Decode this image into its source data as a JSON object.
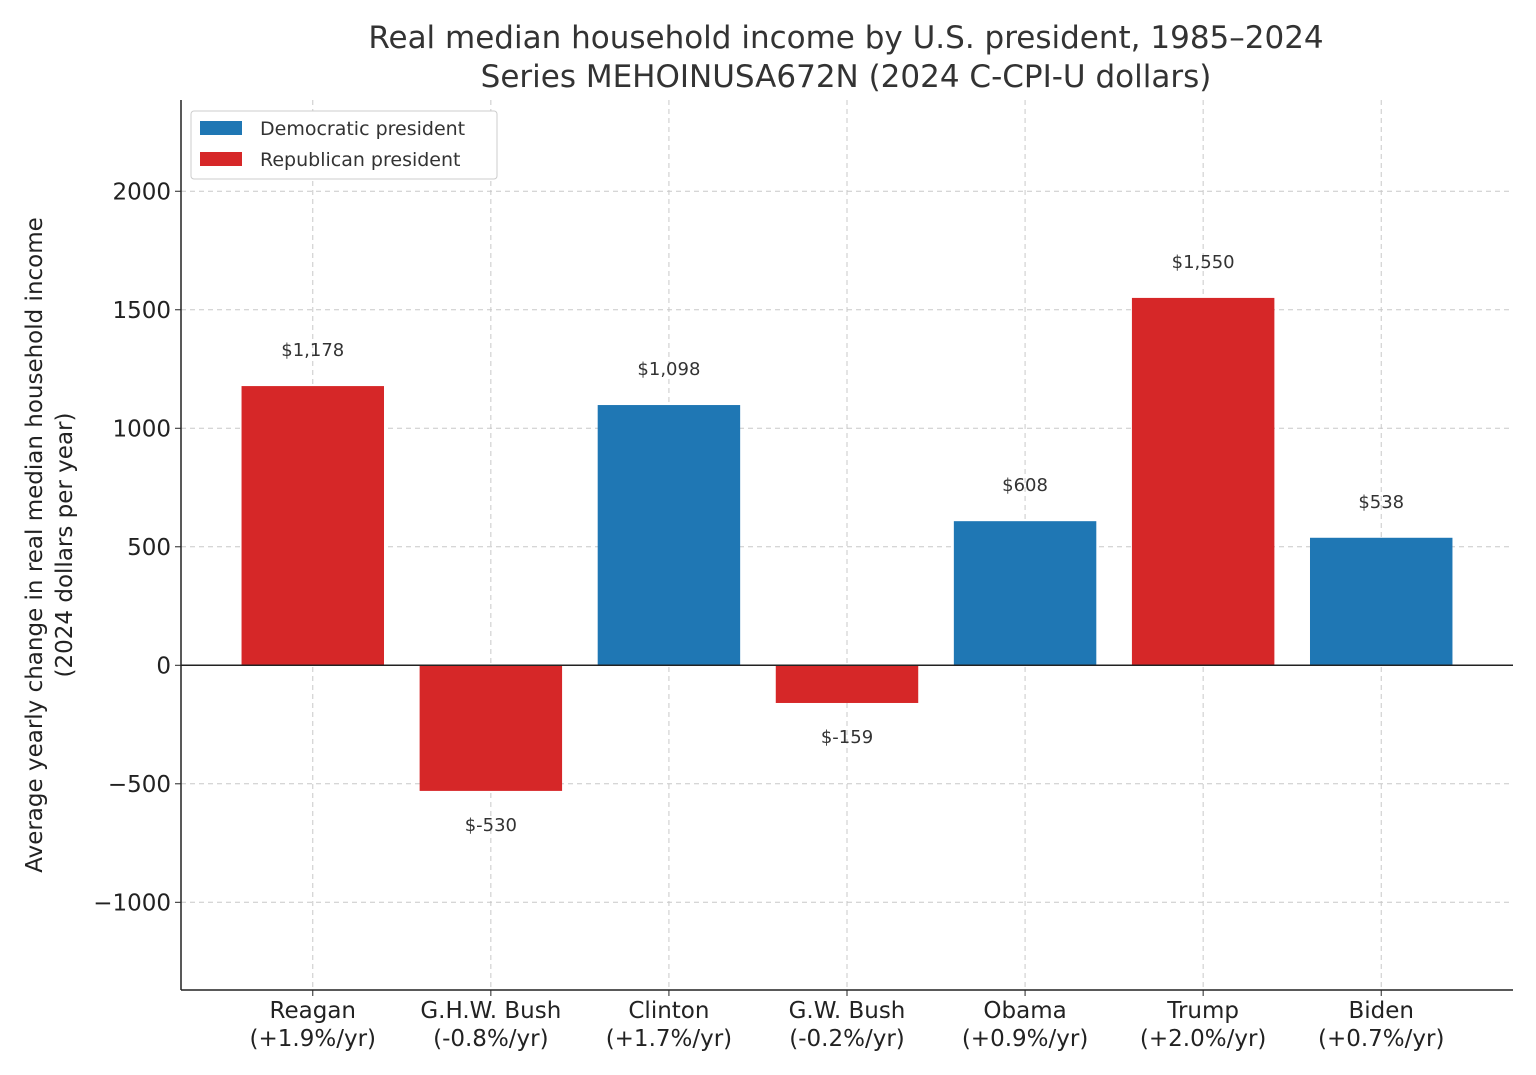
{
  "chart_data": {
    "type": "bar",
    "title": "Real median household income by U.S. president, 1985–2024",
    "subtitle": "Series MEHOINUSA672N (2024 C-CPI-U dollars)",
    "xlabel": "",
    "ylabel": "Average yearly change in real median household income",
    "ylabel2": "(2024 dollars per year)",
    "categories": [
      "Reagan",
      "G.H.W. Bush",
      "Clinton",
      "G.W. Bush",
      "Obama",
      "Trump",
      "Biden"
    ],
    "category_sublabels": [
      "(+1.9%/yr)",
      "(-0.8%/yr)",
      "(+1.7%/yr)",
      "(-0.2%/yr)",
      "(+0.9%/yr)",
      "(+2.0%/yr)",
      "(+0.7%/yr)"
    ],
    "values": [
      1178,
      -530,
      1098,
      -159,
      608,
      1550,
      538
    ],
    "data_labels": [
      "$1,178",
      "$-530",
      "$1,098",
      "$-159",
      "$608",
      "$1,550",
      "$538"
    ],
    "party": [
      "Republican",
      "Republican",
      "Democratic",
      "Republican",
      "Democratic",
      "Republican",
      "Democratic"
    ],
    "ylim": [
      -1370,
      2385
    ],
    "yticks": [
      -1000,
      -500,
      0,
      500,
      1000,
      1500,
      2000
    ],
    "ytick_labels": [
      "−1000",
      "−500",
      "0",
      "500",
      "1000",
      "1500",
      "2000"
    ],
    "grid": true,
    "legend": {
      "placement": "top-left",
      "entries": [
        {
          "label": "Democratic president",
          "color": "#1f77b4"
        },
        {
          "label": "Republican president",
          "color": "#d62728"
        }
      ]
    },
    "colors": {
      "Democratic": "#1f77b4",
      "Republican": "#d62728"
    }
  }
}
